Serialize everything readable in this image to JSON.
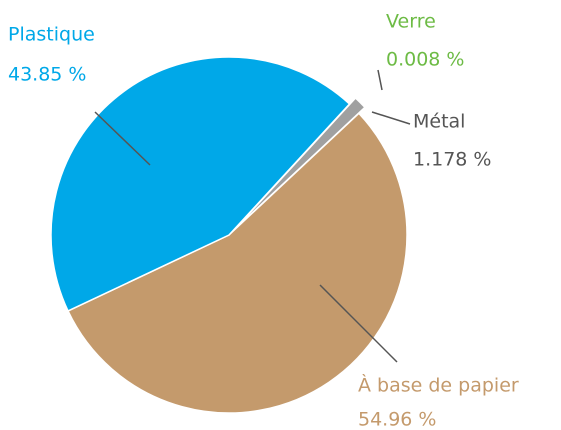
{
  "chart_data": {
    "type": "pie",
    "categories": [
      "Verre",
      "Métal",
      "À base de papier",
      "Plastique"
    ],
    "values": [
      0.008,
      1.178,
      54.96,
      43.85
    ],
    "value_labels": [
      "0.008 %",
      "1.178 %",
      "54.96 %",
      "43.85 %"
    ],
    "colors": [
      "#6dbb45",
      "#a0a0a0",
      "#c49a6c",
      "#00a8e8"
    ]
  }
}
